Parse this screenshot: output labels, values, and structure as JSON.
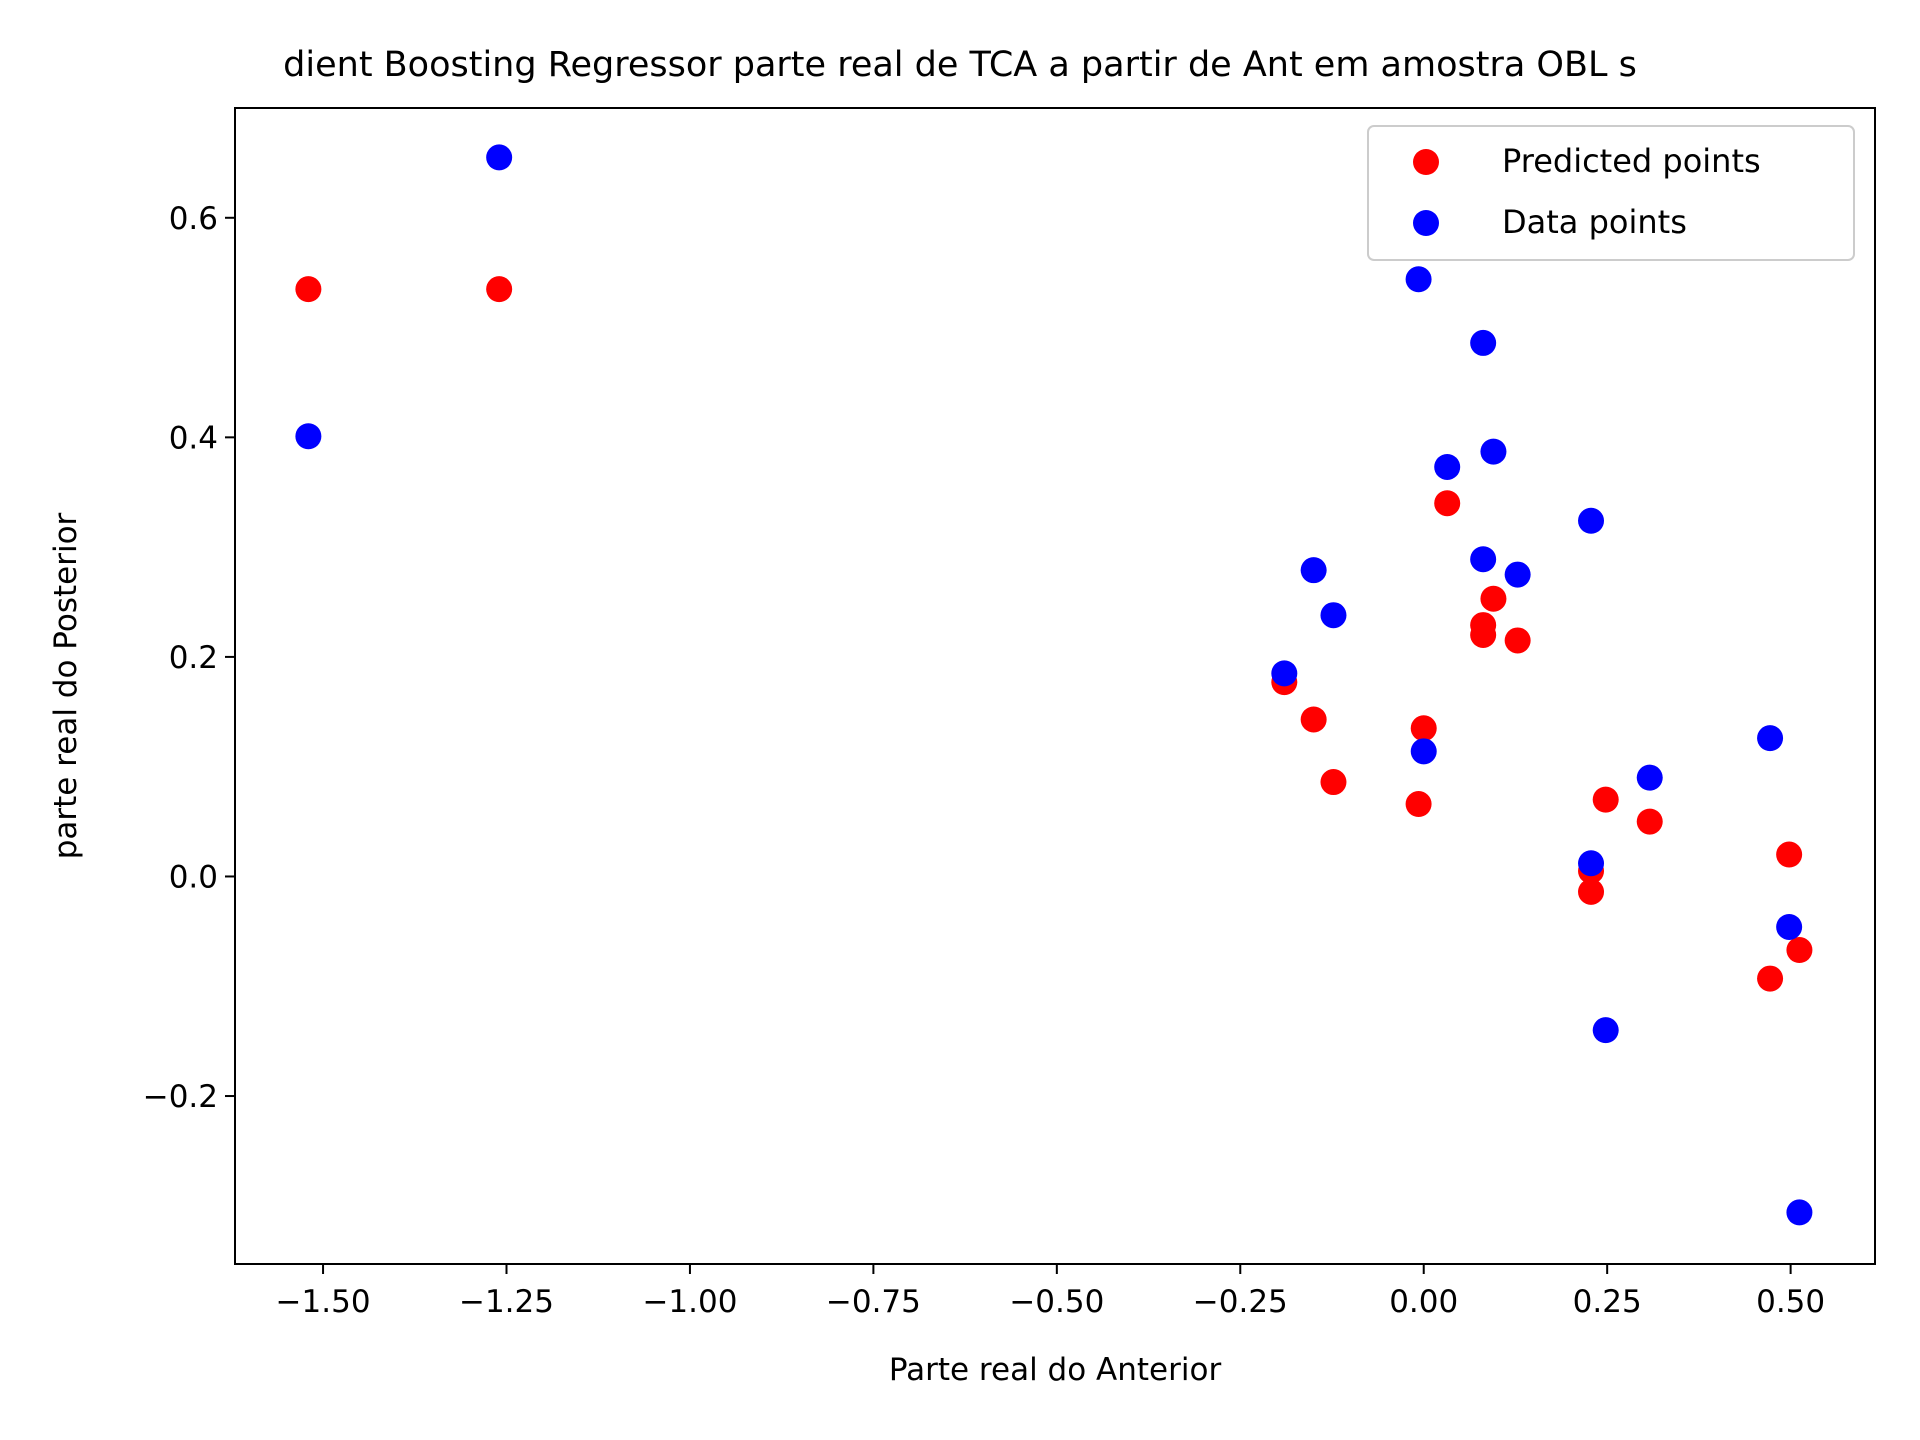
{
  "chart_data": {
    "type": "scatter",
    "title": "dient Boosting Regressor parte real de TCA a partir de Ant em amostra  OBL s",
    "xlabel": "Parte real do Anterior",
    "ylabel": "parte real do Posterior",
    "xlim": [
      -1.62,
      0.615
    ],
    "ylim": [
      -0.353,
      0.7
    ],
    "grid": false,
    "legend_position": "upper right",
    "x_ticks": [
      -1.5,
      -1.25,
      -1.0,
      -0.75,
      -0.5,
      -0.25,
      0.0,
      0.25,
      0.5
    ],
    "x_tick_labels": [
      "−1.50",
      "−1.25",
      "−1.00",
      "−0.75",
      "−0.50",
      "−0.25",
      "0.00",
      "0.25",
      "0.50"
    ],
    "y_ticks": [
      -0.2,
      0.0,
      0.2,
      0.4,
      0.6
    ],
    "y_tick_labels": [
      "−0.2",
      "0.0",
      "0.2",
      "0.4",
      "0.6"
    ],
    "series": [
      {
        "name": "Predicted points",
        "color": "#ff0000",
        "points": [
          [
            -1.52,
            0.535
          ],
          [
            -1.26,
            0.535
          ],
          [
            -0.19,
            0.177
          ],
          [
            -0.15,
            0.143
          ],
          [
            -0.123,
            0.086
          ],
          [
            -0.007,
            0.066
          ],
          [
            0.0,
            0.135
          ],
          [
            0.032,
            0.34
          ],
          [
            0.081,
            0.229
          ],
          [
            0.081,
            0.22
          ],
          [
            0.095,
            0.253
          ],
          [
            0.128,
            0.215
          ],
          [
            0.228,
            0.005
          ],
          [
            0.228,
            -0.014
          ],
          [
            0.248,
            0.07
          ],
          [
            0.308,
            0.05
          ],
          [
            0.472,
            -0.093
          ],
          [
            0.498,
            0.02
          ],
          [
            0.512,
            -0.067
          ]
        ]
      },
      {
        "name": "Data points",
        "color": "#0000ff",
        "points": [
          [
            -1.26,
            0.655
          ],
          [
            -1.52,
            0.401
          ],
          [
            -0.007,
            0.544
          ],
          [
            0.081,
            0.486
          ],
          [
            0.095,
            0.387
          ],
          [
            0.032,
            0.373
          ],
          [
            0.228,
            0.324
          ],
          [
            0.081,
            0.289
          ],
          [
            0.128,
            0.275
          ],
          [
            -0.15,
            0.279
          ],
          [
            -0.123,
            0.238
          ],
          [
            -0.19,
            0.185
          ],
          [
            0.0,
            0.114
          ],
          [
            0.308,
            0.09
          ],
          [
            0.472,
            0.126
          ],
          [
            0.228,
            0.012
          ],
          [
            0.498,
            -0.046
          ],
          [
            0.248,
            -0.14
          ],
          [
            0.512,
            -0.306
          ]
        ]
      }
    ]
  }
}
